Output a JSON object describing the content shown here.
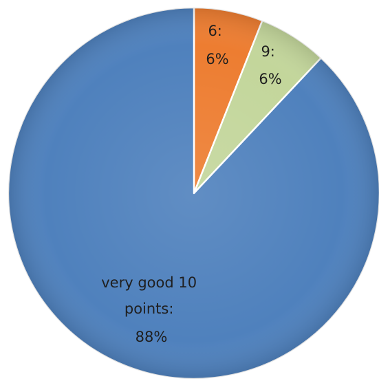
{
  "chart_data": {
    "type": "pie",
    "title": "",
    "legend": "none",
    "start_angle_deg": 0,
    "direction": "clockwise",
    "slices": [
      {
        "name": "6",
        "value": 6,
        "color": "#ed7d31",
        "label_lines": [
          "6:",
          "6%"
        ]
      },
      {
        "name": "9",
        "value": 6,
        "color": "#c3d69b",
        "label_lines": [
          "9:",
          "6%"
        ]
      },
      {
        "name": "very good 10 points",
        "value": 88,
        "color": "#4f81bd",
        "label_lines": [
          "very good 10",
          "points:",
          "88%"
        ]
      }
    ]
  }
}
